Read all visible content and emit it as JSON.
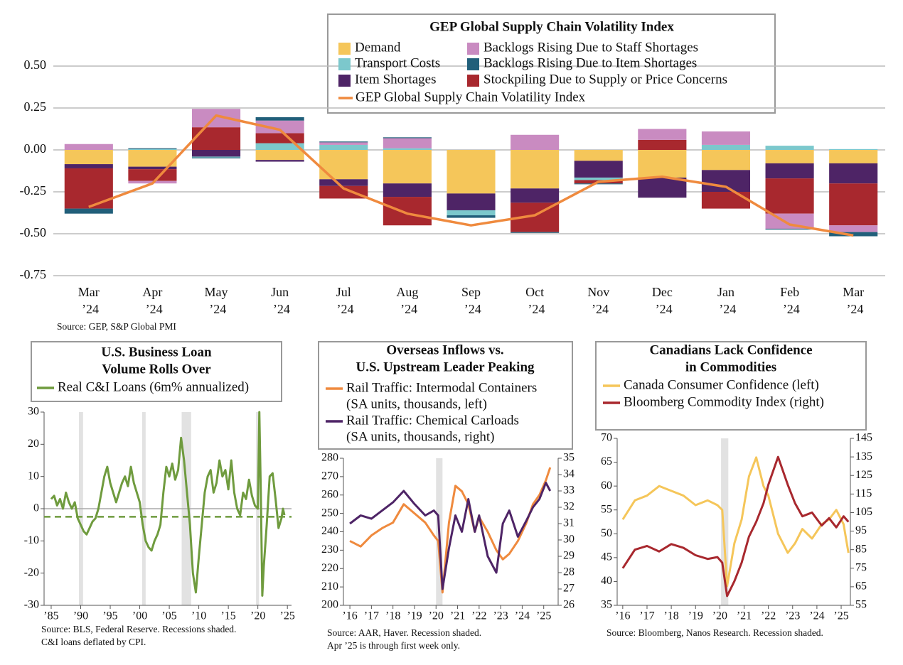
{
  "chart_data": [
    {
      "type": "bar",
      "stacked": true,
      "title": "GEP Global Supply Chain Volatility Index",
      "categories": [
        "Mar ’24",
        "Apr ’24",
        "May ’24",
        "Jun ’24",
        "Jul ’24",
        "Aug ’24",
        "Sep ’24",
        "Oct ’24",
        "Nov ’24",
        "Dec ’24",
        "Jan ’24",
        "Feb ’24",
        "Mar ’24"
      ],
      "series": [
        {
          "name": "Demand",
          "color": "#f5c65a",
          "values": [
            -0.085,
            -0.1,
            0,
            -0.06,
            -0.175,
            -0.2,
            -0.26,
            -0.23,
            -0.065,
            -0.165,
            -0.12,
            -0.08,
            -0.08
          ]
        },
        {
          "name": "Transport Costs",
          "color": "#7cc8cc",
          "values": [
            0,
            0.005,
            -0.005,
            0.04,
            0.03,
            0.01,
            -0.03,
            0,
            -0.015,
            0,
            0.03,
            0.025,
            0.005
          ]
        },
        {
          "name": "Item Shortages",
          "color": "#4e2466",
          "values": [
            -0.025,
            -0.015,
            -0.04,
            -0.01,
            -0.04,
            -0.08,
            -0.1,
            -0.085,
            -0.1,
            -0.12,
            -0.13,
            -0.09,
            -0.12
          ]
        },
        {
          "name": "Backlogs Rising Due to Staff Shortages",
          "color": "#c98bc1",
          "values": [
            0.035,
            -0.015,
            0.11,
            0.075,
            0.015,
            0.06,
            0,
            0.09,
            0,
            0.065,
            0.08,
            -0.09,
            -0.04
          ]
        },
        {
          "name": "Backlogs Rising Due to Item Shortages",
          "color": "#215f7a",
          "values": [
            -0.03,
            0.005,
            -0.005,
            0.02,
            0.005,
            0.005,
            -0.015,
            -0.005,
            -0.005,
            0,
            0,
            -0.005,
            -0.025
          ]
        },
        {
          "name": "Stockpiling Due to Supply or Price Concerns",
          "color": "#a8282e",
          "values": [
            -0.24,
            -0.07,
            0.135,
            0.06,
            -0.075,
            -0.17,
            0,
            -0.175,
            -0.02,
            0.06,
            -0.1,
            -0.21,
            -0.25
          ]
        },
        {
          "name": "GEP Global Supply Chain Volatility Index",
          "type": "line",
          "color": "#ef8a3e",
          "values": [
            -0.34,
            -0.2,
            0.205,
            0.12,
            -0.23,
            -0.38,
            -0.45,
            -0.39,
            -0.19,
            -0.16,
            -0.22,
            -0.445,
            -0.51
          ]
        }
      ],
      "ylim": [
        -0.75,
        0.5
      ],
      "yticks": [
        {
          "value": 0.5,
          "label": "0.50"
        },
        {
          "value": 0.25,
          "label": "0.25"
        },
        {
          "value": 0,
          "label": "0.00"
        },
        {
          "value": -0.25,
          "label": "-0.25"
        },
        {
          "value": -0.5,
          "label": "-0.50"
        },
        {
          "value": -0.75,
          "label": "-0.75"
        }
      ],
      "grid": true,
      "source": "Source: GEP, S&P Global PMI"
    },
    {
      "type": "line",
      "title": [
        "U.S. Business Loan",
        "Volume Rolls Over"
      ],
      "x": [
        1985,
        1985.5,
        1986,
        1986.5,
        1987,
        1987.5,
        1988,
        1988.5,
        1989,
        1989.5,
        1990,
        1990.5,
        1991,
        1991.5,
        1992,
        1992.5,
        1993,
        1993.5,
        1994,
        1994.5,
        1995,
        1995.5,
        1996,
        1996.5,
        1997,
        1997.5,
        1998,
        1998.5,
        1999,
        1999.5,
        2000,
        2000.5,
        2001,
        2001.5,
        2002,
        2002.5,
        2003,
        2003.5,
        2004,
        2004.5,
        2005,
        2005.5,
        2006,
        2006.5,
        2007,
        2007.5,
        2008,
        2008.5,
        2009,
        2009.5,
        2010,
        2010.5,
        2011,
        2011.5,
        2012,
        2012.5,
        2013,
        2013.5,
        2014,
        2014.5,
        2015,
        2015.5,
        2016,
        2016.5,
        2017,
        2017.5,
        2018,
        2018.5,
        2019,
        2019.5,
        2020,
        2020.25,
        2020.5,
        2020.75,
        2021,
        2021.5,
        2022,
        2022.5,
        2023,
        2023.5,
        2024,
        2024.25,
        2024.5
      ],
      "series": [
        {
          "name": [
            "Real C&I Loans (6m% annualized)"
          ],
          "color": "#6f9b3e",
          "values": [
            3,
            4,
            1,
            3,
            0,
            5,
            2,
            0,
            2,
            -3,
            -5,
            -7,
            -8,
            -6,
            -4,
            -3,
            0,
            5,
            10,
            13,
            8,
            5,
            2,
            5,
            8,
            10,
            7,
            13,
            8,
            5,
            2,
            -5,
            -10,
            -12,
            -13,
            -10,
            -8,
            -5,
            5,
            13,
            10,
            14,
            9,
            12,
            22,
            15,
            5,
            -5,
            -20,
            -26,
            -15,
            -5,
            5,
            10,
            12,
            5,
            8,
            15,
            10,
            12,
            6,
            15,
            5,
            0,
            -2,
            5,
            3,
            9,
            4,
            1,
            0,
            30,
            5,
            -27,
            -18,
            -5,
            10,
            11,
            3,
            -6,
            -3,
            0,
            -2
          ]
        }
      ],
      "xlim": [
        1983.8,
        2025.7
      ],
      "xticks": [
        {
          "value": 1985,
          "label": "’85"
        },
        {
          "value": 1990,
          "label": "’90"
        },
        {
          "value": 1995,
          "label": "’95"
        },
        {
          "value": 2000,
          "label": "’00"
        },
        {
          "value": 2005,
          "label": "’05"
        },
        {
          "value": 2010,
          "label": "’10"
        },
        {
          "value": 2015,
          "label": "’15"
        },
        {
          "value": 2020,
          "label": "’20"
        },
        {
          "value": 2025,
          "label": "’25"
        }
      ],
      "ylim": [
        -30,
        30
      ],
      "yticks": [
        30,
        20,
        10,
        0,
        -10,
        -20,
        -30
      ],
      "zero_line": true,
      "hline": -2.5,
      "recessions": [
        [
          1989.7,
          1990.4
        ],
        [
          2000.4,
          2001.0
        ],
        [
          2007.1,
          2008.7
        ],
        [
          2019.7,
          2020.2
        ]
      ],
      "source": [
        "Source: BLS, Federal Reserve. Recessions shaded.",
        "C&I loans deflated by CPI."
      ]
    },
    {
      "type": "line",
      "title": [
        "Overseas Inflows vs.",
        "U.S. Upstream Leader Peaking"
      ],
      "x": [
        2016,
        2016.5,
        2017,
        2017.5,
        2018,
        2018.5,
        2019,
        2019.5,
        2019.9,
        2020.1,
        2020.3,
        2020.6,
        2020.9,
        2021.2,
        2021.5,
        2021.8,
        2022,
        2022.4,
        2022.8,
        2023.1,
        2023.4,
        2023.8,
        2024.2,
        2024.5,
        2024.8,
        2025.1,
        2025.3
      ],
      "series": [
        {
          "name": [
            "Rail Traffic: Intermodal Containers",
            "(SA units, thousands, left)"
          ],
          "color": "#ef8a3e",
          "values": [
            235,
            232,
            238,
            242,
            245,
            255,
            250,
            245,
            238,
            235,
            207,
            245,
            265,
            262,
            255,
            240,
            248,
            240,
            230,
            225,
            228,
            235,
            245,
            255,
            260,
            268,
            275
          ]
        },
        {
          "name": [
            "Rail Traffic: Chemical Carloads",
            "(SA units, thousands, right)"
          ],
          "color": "#4e2466",
          "axis": "y2",
          "values": [
            31,
            31.5,
            31.3,
            31.8,
            32.3,
            33,
            32.2,
            31.5,
            31.8,
            31.5,
            27,
            29.5,
            31.5,
            30.5,
            32.5,
            30.5,
            31.5,
            29,
            28,
            31,
            31.8,
            30.2,
            31.2,
            32,
            32.5,
            33.5,
            33
          ]
        }
      ],
      "xlim": [
        2015.7,
        2025.67
      ],
      "xticks": [
        {
          "value": 2016,
          "label": "’16"
        },
        {
          "value": 2017,
          "label": "’17"
        },
        {
          "value": 2018,
          "label": "’18"
        },
        {
          "value": 2019,
          "label": "’19"
        },
        {
          "value": 2020,
          "label": "’20"
        },
        {
          "value": 2021,
          "label": "’21"
        },
        {
          "value": 2022,
          "label": "’22"
        },
        {
          "value": 2023,
          "label": "’23"
        },
        {
          "value": 2024,
          "label": "’24"
        },
        {
          "value": 2025,
          "label": "’25"
        }
      ],
      "ylim": [
        200,
        280
      ],
      "yticks": [
        280,
        270,
        260,
        250,
        240,
        230,
        220,
        210,
        200
      ],
      "y2lim": [
        26,
        35
      ],
      "y2ticks": [
        35,
        34,
        33,
        32,
        31,
        30,
        29,
        28,
        27,
        26
      ],
      "recessions": [
        [
          2020.0,
          2020.3
        ]
      ],
      "source": [
        "Source: AAR, Haver. Recession shaded.",
        "Apr ’25 is through first week only."
      ]
    },
    {
      "type": "line",
      "title": [
        "Canadians Lack Confidence",
        "in Commodities"
      ],
      "x": [
        2016,
        2016.5,
        2017,
        2017.5,
        2018,
        2018.5,
        2019,
        2019.5,
        2019.9,
        2020.1,
        2020.3,
        2020.6,
        2020.9,
        2021.2,
        2021.5,
        2021.8,
        2022,
        2022.4,
        2022.8,
        2023.1,
        2023.4,
        2023.8,
        2024.2,
        2024.5,
        2024.8,
        2025.1,
        2025.3
      ],
      "series": [
        {
          "name": [
            "Canada Consumer Confidence (left)"
          ],
          "color": "#f5c65a",
          "values": [
            53,
            57,
            58,
            60,
            59,
            58,
            56,
            57,
            56,
            55,
            39,
            48,
            53,
            62,
            66,
            60,
            58,
            50,
            46,
            48,
            51,
            49,
            52,
            53,
            55,
            52,
            46
          ]
        },
        {
          "name": [
            "Bloomberg Commodity Index (right)"
          ],
          "color": "#a8282e",
          "axis": "y2",
          "values": [
            75,
            85,
            87,
            84,
            88,
            86,
            82,
            80,
            81,
            78,
            60,
            68,
            78,
            92,
            100,
            110,
            120,
            135,
            120,
            110,
            103,
            105,
            98,
            102,
            97,
            103,
            100
          ]
        }
      ],
      "xlim": [
        2015.77,
        2025.38
      ],
      "xticks": [
        {
          "value": 2016,
          "label": "’16"
        },
        {
          "value": 2017,
          "label": "’17"
        },
        {
          "value": 2018,
          "label": "’18"
        },
        {
          "value": 2019,
          "label": "’19"
        },
        {
          "value": 2020,
          "label": "’20"
        },
        {
          "value": 2021,
          "label": "’21"
        },
        {
          "value": 2022,
          "label": "’22"
        },
        {
          "value": 2023,
          "label": "’23"
        },
        {
          "value": 2024,
          "label": "’24"
        },
        {
          "value": 2025,
          "label": "’25"
        }
      ],
      "ylim": [
        35,
        70
      ],
      "yticks": [
        70,
        65,
        60,
        55,
        50,
        45,
        40,
        35
      ],
      "y2lim": [
        55,
        145
      ],
      "y2ticks": [
        145,
        135,
        125,
        115,
        105,
        95,
        85,
        75,
        65,
        55
      ],
      "recessions": [
        [
          2020.05,
          2020.35
        ]
      ],
      "source": [
        "Source: Bloomberg, Nanos Research. Recession shaded."
      ]
    }
  ]
}
